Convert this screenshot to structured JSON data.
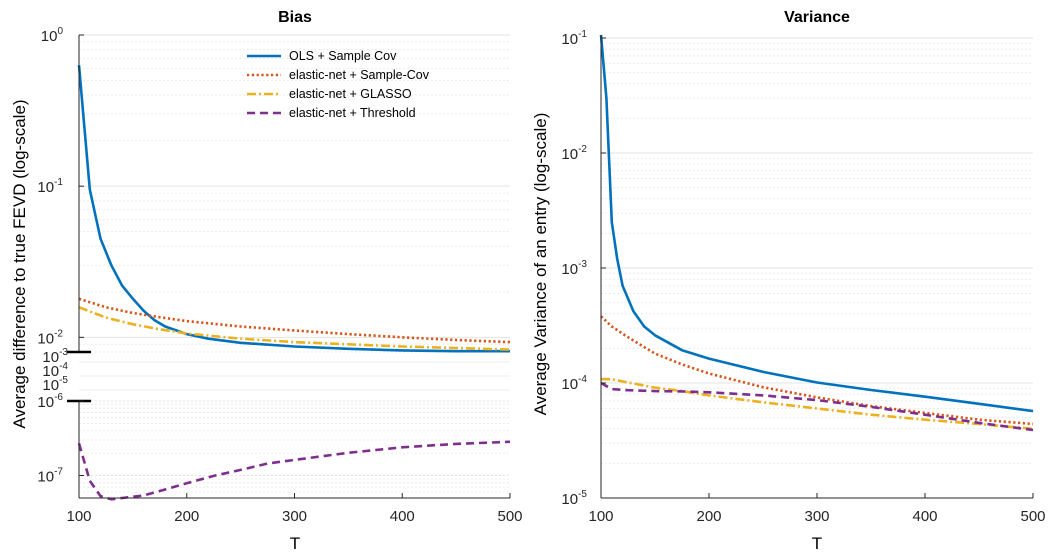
{
  "chart_data": [
    {
      "type": "line",
      "title": "Bias",
      "xlabel": "T",
      "ylabel": "Average difference to true FEVD (log-scale)",
      "xlim": [
        100,
        500
      ],
      "xticks": [
        "100",
        "200",
        "300",
        "400",
        "500"
      ],
      "yscale": "log, broken axis",
      "upper_segment_ylim": [
        0.008,
        1
      ],
      "gap_labels": [
        "10",
        "-3",
        "10",
        "-4",
        "10",
        "-5"
      ],
      "lower_segment_ylim": [
        5e-08,
        1e-06
      ],
      "grid": true,
      "legend_position": "top-right",
      "series": [
        {
          "name": "OLS + Sample Cov",
          "color": "#0072BD",
          "style": "solid",
          "x": [
            100,
            110,
            120,
            130,
            140,
            150,
            160,
            170,
            180,
            200,
            220,
            250,
            300,
            350,
            400,
            450,
            500
          ],
          "y": [
            0.63,
            0.095,
            0.045,
            0.03,
            0.022,
            0.018,
            0.015,
            0.013,
            0.0118,
            0.0105,
            0.0098,
            0.0092,
            0.0087,
            0.0084,
            0.0082,
            0.0081,
            0.0081
          ]
        },
        {
          "name": "elastic-net + Sample-Cov",
          "color": "#D95319",
          "style": "dotted",
          "x": [
            100,
            125,
            150,
            175,
            200,
            250,
            300,
            350,
            400,
            450,
            500
          ],
          "y": [
            0.018,
            0.0158,
            0.0145,
            0.0136,
            0.0128,
            0.0118,
            0.0111,
            0.0105,
            0.01,
            0.0096,
            0.0093
          ]
        },
        {
          "name": "elastic-net + GLASSO",
          "color": "#EDB120",
          "style": "dash-dot",
          "x": [
            100,
            125,
            150,
            175,
            200,
            250,
            300,
            350,
            400,
            450,
            500
          ],
          "y": [
            0.0158,
            0.0135,
            0.0122,
            0.0113,
            0.0106,
            0.0098,
            0.0093,
            0.009,
            0.0087,
            0.0085,
            0.0083
          ]
        },
        {
          "name": "elastic-net + Threshold",
          "color": "#7E2F8E",
          "style": "dashed",
          "x": [
            100,
            110,
            120,
            130,
            140,
            150,
            160,
            175,
            200,
            225,
            250,
            275,
            300,
            350,
            400,
            450,
            500
          ],
          "y": [
            2.7e-07,
            8.5e-08,
            5.3e-08,
            4.8e-08,
            5e-08,
            5.2e-08,
            5.4e-08,
            6.2e-08,
            7.9e-08,
            9.9e-08,
            1.19e-07,
            1.45e-07,
            1.62e-07,
            2.02e-07,
            2.39e-07,
            2.66e-07,
            2.84e-07
          ]
        }
      ]
    },
    {
      "type": "line",
      "title": "Variance",
      "xlabel": "T",
      "ylabel": "Average Variance of an entry (log-scale)",
      "xlim": [
        100,
        500
      ],
      "xticks": [
        "100",
        "200",
        "300",
        "400",
        "500"
      ],
      "yscale": "log",
      "ylim": [
        1e-05,
        0.1
      ],
      "ytick_labels": [
        [
          "10",
          "-1"
        ],
        [
          "10",
          "-2"
        ],
        [
          "10",
          "-3"
        ],
        [
          "10",
          "-4"
        ],
        [
          "10",
          "-5"
        ]
      ],
      "grid": true,
      "series": [
        {
          "name": "OLS + Sample Cov",
          "color": "#0072BD",
          "style": "solid",
          "x": [
            100,
            105,
            110,
            115,
            120,
            130,
            140,
            150,
            175,
            200,
            250,
            300,
            350,
            400,
            450,
            500
          ],
          "y": [
            0.12,
            0.03,
            0.0025,
            0.0012,
            0.0007,
            0.00042,
            0.00031,
            0.00026,
            0.000193,
            0.000163,
            0.000125,
            0.000101,
            8.7e-05,
            7.6e-05,
            6.6e-05,
            5.7e-05
          ]
        },
        {
          "name": "elastic-net + Sample-Cov",
          "color": "#D95319",
          "style": "dotted",
          "x": [
            100,
            110,
            125,
            150,
            175,
            200,
            250,
            300,
            350,
            400,
            450,
            500
          ],
          "y": [
            0.00038,
            0.00031,
            0.00025,
            0.00018,
            0.000145,
            0.000121,
            9.2e-05,
            7.5e-05,
            6.3e-05,
            5.5e-05,
            4.8e-05,
            4.4e-05
          ]
        },
        {
          "name": "elastic-net + GLASSO",
          "color": "#EDB120",
          "style": "dash-dot",
          "x": [
            100,
            110,
            125,
            150,
            175,
            200,
            250,
            300,
            350,
            400,
            450,
            500
          ],
          "y": [
            0.000108,
            0.000108,
            0.000101,
            9.1e-05,
            8.5e-05,
            7.8e-05,
            6.8e-05,
            6e-05,
            5.3e-05,
            4.8e-05,
            4.4e-05,
            4e-05
          ]
        },
        {
          "name": "elastic-net + Threshold",
          "color": "#7E2F8E",
          "style": "dashed",
          "x": [
            100,
            110,
            125,
            150,
            175,
            200,
            250,
            300,
            350,
            400,
            450,
            500
          ],
          "y": [
            0.0001,
            8.85e-05,
            8.65e-05,
            8.5e-05,
            8.45e-05,
            8.3e-05,
            7.8e-05,
            7.1e-05,
            6.2e-05,
            5.3e-05,
            4.5e-05,
            3.9e-05
          ]
        }
      ]
    }
  ]
}
